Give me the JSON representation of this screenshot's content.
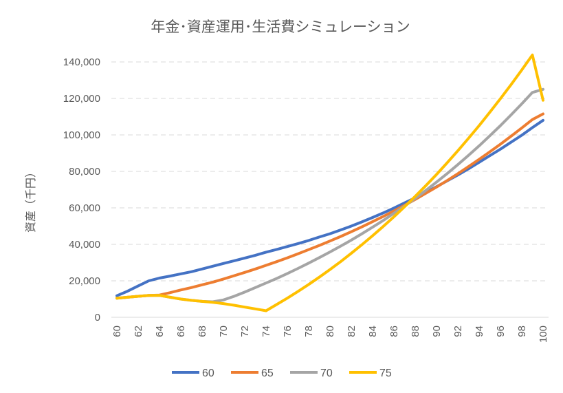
{
  "chart_data": {
    "type": "line",
    "title": "年金･資産運用･生活費シミュレーション",
    "ylabel": "資産（千円）",
    "xlabel": "",
    "ylim": [
      0,
      140000
    ],
    "yticks": [
      "0",
      "20,000",
      "40,000",
      "60,000",
      "80,000",
      "100,000",
      "120,000",
      "140,000"
    ],
    "ytick_values": [
      0,
      20000,
      40000,
      60000,
      80000,
      100000,
      120000,
      140000
    ],
    "x": [
      60,
      61,
      62,
      63,
      64,
      65,
      66,
      67,
      68,
      69,
      70,
      71,
      72,
      73,
      74,
      75,
      76,
      77,
      78,
      79,
      80,
      81,
      82,
      83,
      84,
      85,
      86,
      87,
      88,
      89,
      90,
      91,
      92,
      93,
      94,
      95,
      96,
      97,
      98,
      99,
      100
    ],
    "xticks": [
      "60",
      "62",
      "64",
      "66",
      "68",
      "70",
      "72",
      "74",
      "76",
      "78",
      "80",
      "82",
      "84",
      "86",
      "88",
      "90",
      "92",
      "94",
      "96",
      "98",
      "100"
    ],
    "legend_position": "bottom",
    "grid": true,
    "series": [
      {
        "name": "60",
        "color": "#4472c4",
        "values": [
          11800,
          14300,
          17200,
          20000,
          21500,
          22600,
          23800,
          25000,
          26500,
          28000,
          29500,
          31000,
          32500,
          34000,
          35700,
          37200,
          38800,
          40400,
          42100,
          44000,
          45800,
          47900,
          50000,
          52300,
          54700,
          57200,
          59900,
          62700,
          65500,
          68500,
          71600,
          74800,
          78000,
          81400,
          85000,
          88600,
          92200,
          96000,
          99800,
          104000,
          108000
        ]
      },
      {
        "name": "65",
        "color": "#ed7d31",
        "values": [
          10500,
          11000,
          11500,
          12000,
          12200,
          13500,
          15000,
          16300,
          17800,
          19300,
          21000,
          22800,
          24600,
          26500,
          28500,
          30500,
          32600,
          34800,
          37100,
          39400,
          41800,
          44300,
          46900,
          49600,
          52400,
          55300,
          58300,
          61400,
          64600,
          68000,
          71400,
          75000,
          78700,
          82600,
          86600,
          90700,
          94900,
          99300,
          103800,
          108400,
          111500
        ]
      },
      {
        "name": "70",
        "color": "#a5a5a5",
        "values": [
          10500,
          11000,
          11500,
          12000,
          12000,
          11000,
          10000,
          9300,
          8700,
          8500,
          9500,
          11500,
          13800,
          16300,
          18800,
          21300,
          24000,
          26800,
          29700,
          32700,
          35800,
          39000,
          42300,
          45800,
          49400,
          53100,
          57000,
          61000,
          65200,
          69600,
          74100,
          78800,
          83700,
          88800,
          94000,
          99500,
          105100,
          111000,
          117000,
          123300,
          125000
        ]
      },
      {
        "name": "75",
        "color": "#ffc000",
        "values": [
          10500,
          11000,
          11500,
          12000,
          12000,
          11000,
          10000,
          9300,
          8700,
          8200,
          7500,
          6600,
          5600,
          4600,
          3600,
          7000,
          10500,
          14200,
          18000,
          22000,
          26200,
          30500,
          35100,
          39800,
          44700,
          49800,
          55100,
          60600,
          66300,
          72200,
          78300,
          84700,
          91300,
          98100,
          105100,
          112400,
          119900,
          127600,
          135600,
          143800,
          119000
        ]
      }
    ]
  }
}
